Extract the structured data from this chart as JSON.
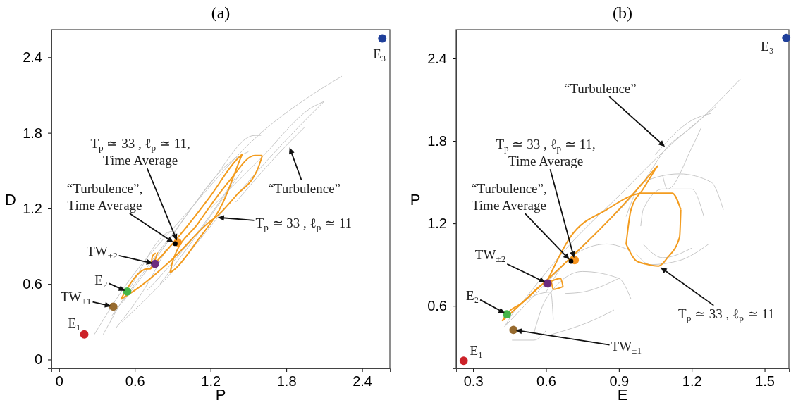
{
  "chart_data": [
    {
      "type": "line",
      "title": "(a)",
      "xlabel": "P",
      "ylabel": "D",
      "xlim": [
        -0.06,
        2.62
      ],
      "ylim": [
        -0.07,
        2.62
      ],
      "xticks": [
        0,
        0.6,
        1.2,
        1.8,
        2.4
      ],
      "yticks": [
        0,
        0.6,
        1.2,
        1.8,
        2.4
      ],
      "series": [
        {
          "type": "line",
          "marker": "none",
          "color": "#c8c8c8",
          "x": [
            0.28,
            0.5,
            1.0,
            1.6,
            2.0,
            2.24
          ],
          "values": [
            0.2,
            0.55,
            1.15,
            1.8,
            2.1,
            2.25
          ]
        },
        {
          "type": "line",
          "marker": "none",
          "color": "#c8c8c8",
          "x": [
            0.5,
            0.9,
            1.4,
            1.9,
            2.1
          ],
          "values": [
            0.3,
            0.7,
            1.3,
            1.85,
            2.05
          ]
        },
        {
          "type": "line",
          "marker": "none",
          "color": "#c8c8c8",
          "x": [
            0.5,
            0.8,
            1.2,
            1.55,
            1.6
          ],
          "values": [
            0.45,
            0.85,
            1.4,
            1.78,
            1.78
          ]
        },
        {
          "type": "line",
          "marker": "none",
          "color": "#c8c8c8",
          "x": [
            0.8,
            1.1,
            1.45
          ],
          "values": [
            0.6,
            1.0,
            1.5
          ]
        },
        {
          "type": "line",
          "marker": "none",
          "color": "#c8c8c8",
          "x": [
            0.35,
            0.55,
            0.9,
            0.92
          ],
          "values": [
            0.2,
            0.55,
            1.02,
            1.0
          ]
        },
        {
          "type": "line",
          "marker": "none",
          "color": "#c8c8c8",
          "x": [
            0.45,
            0.7,
            0.85
          ],
          "values": [
            0.25,
            0.6,
            0.88
          ]
        },
        {
          "type": "line",
          "marker": "none",
          "color": "#c8c8c8",
          "x": [
            1.2,
            1.6,
            2.0,
            2.1
          ],
          "values": [
            1.2,
            1.6,
            2.0,
            2.05
          ]
        },
        {
          "type": "line",
          "marker": "none",
          "color": "#c8c8c8",
          "x": [
            1.4,
            1.8,
            1.95
          ],
          "values": [
            1.25,
            1.7,
            1.85
          ]
        },
        {
          "type": "line",
          "marker": "none",
          "color": "#c8c8c8",
          "x": [
            0.42,
            0.9,
            1.4,
            1.5
          ],
          "values": [
            0.35,
            1.0,
            1.6,
            1.65
          ]
        },
        {
          "type": "line",
          "marker": "none",
          "color": "#c8c8c8",
          "x": [
            0.7,
            1.2,
            1.4
          ],
          "values": [
            0.55,
            1.15,
            1.45
          ]
        },
        {
          "type": "line",
          "marker": "none",
          "color": "#f39c1f",
          "x": [
            0.49,
            0.7,
            0.72,
            0.78
          ],
          "values": [
            0.48,
            0.72,
            0.72,
            0.85
          ]
        },
        {
          "type": "line",
          "marker": "none",
          "color": "#f39c1f",
          "x": [
            0.73,
            0.74,
            0.765
          ],
          "values": [
            0.76,
            0.82,
            0.845
          ]
        },
        {
          "type": "line",
          "marker": "none",
          "color": "#f39c1f",
          "x": [
            0.72,
            0.95,
            1.2,
            1.4,
            1.45
          ],
          "values": [
            0.72,
            0.98,
            1.3,
            1.58,
            1.63
          ]
        },
        {
          "type": "line",
          "marker": "none",
          "color": "#f39c1f",
          "x": [
            0.88,
            0.92,
            1.1,
            1.3,
            1.43,
            1.45
          ],
          "values": [
            0.69,
            0.72,
            0.95,
            1.25,
            1.58,
            1.63
          ]
        },
        {
          "type": "line",
          "marker": "none",
          "color": "#f39c1f",
          "x": [
            0.88,
            0.9,
            1.1,
            1.35,
            1.55,
            1.61
          ],
          "values": [
            0.69,
            0.78,
            1.08,
            1.42,
            1.62,
            1.62
          ]
        },
        {
          "type": "line",
          "marker": "none",
          "color": "#f39c1f",
          "x": [
            0.49,
            0.6,
            0.9,
            1.2,
            1.24,
            1.4,
            1.58,
            1.61
          ],
          "values": [
            0.48,
            0.55,
            0.8,
            1.1,
            1.13,
            1.3,
            1.53,
            1.62
          ]
        },
        {
          "type": "scatter",
          "marker": "circle",
          "color": "#cc2229",
          "x": [
            0.2
          ],
          "values": [
            0.2
          ]
        },
        {
          "type": "scatter",
          "marker": "circle",
          "color": "#1f3f9a",
          "x": [
            2.56
          ],
          "values": [
            2.55
          ]
        },
        {
          "type": "scatter",
          "marker": "circle",
          "color": "#966a2e",
          "x": [
            0.43
          ],
          "values": [
            0.42
          ]
        },
        {
          "type": "scatter",
          "marker": "circle",
          "color": "#45b649",
          "x": [
            0.54
          ],
          "values": [
            0.54
          ]
        },
        {
          "type": "scatter",
          "marker": "circle",
          "color": "#6c2a7e",
          "x": [
            0.76
          ],
          "values": [
            0.76
          ]
        },
        {
          "type": "scatter",
          "marker": "circle",
          "color": "#f7941d",
          "x": [
            0.94
          ],
          "values": [
            0.93
          ]
        },
        {
          "type": "scatter",
          "marker": "circle",
          "color": "#000000",
          "x": [
            0.92
          ],
          "values": [
            0.92
          ]
        }
      ],
      "annotations": [
        {
          "text": "E₁",
          "x": 0.2,
          "y": 0.2
        },
        {
          "text": "E₃",
          "x": 2.56,
          "y": 2.55
        },
        {
          "text": "TW$_{±1}$",
          "x": 0.43,
          "y": 0.42
        },
        {
          "text": "E₂",
          "x": 0.54,
          "y": 0.54
        },
        {
          "text": "TW$_{±2}$",
          "x": 0.76,
          "y": 0.76
        },
        {
          "text": "“Turbulence”,\nTime Average",
          "x": 0.92,
          "y": 0.92
        },
        {
          "text": "T$_{p}$ ≃ 33 , ℓ$_{p}$ ≃ 11,\nTime Average",
          "x": 0.94,
          "y": 0.93
        },
        {
          "text": "T$_{p}$ ≃ 33 , ℓ$_{p}$ ≃ 11",
          "x": 1.24,
          "y": 1.13
        },
        {
          "text": "“Turbulence”",
          "x": 1.82,
          "y": 1.7
        }
      ]
    },
    {
      "type": "line",
      "title": "(b)",
      "xlabel": "E",
      "ylabel": "P",
      "xlim": [
        0.23,
        1.6
      ],
      "ylim": [
        0.145,
        2.61
      ],
      "xticks": [
        0.3,
        0.6,
        0.9,
        1.2,
        1.5
      ],
      "yticks": [
        0.6,
        1.2,
        1.8,
        2.4
      ],
      "series": [
        {
          "type": "line",
          "marker": "none",
          "color": "#c8c8c8",
          "x": [
            0.43,
            0.7,
            1.0,
            1.096,
            1.2,
            1.4
          ],
          "values": [
            0.45,
            0.95,
            1.5,
            1.748,
            1.9,
            2.25
          ]
        },
        {
          "type": "line",
          "marker": "none",
          "color": "#c8c8c8",
          "x": [
            0.5,
            0.7,
            0.9,
            1.1,
            1.3
          ],
          "values": [
            0.62,
            1.05,
            1.4,
            1.75,
            2.05
          ]
        },
        {
          "type": "line",
          "marker": "none",
          "color": "#c8c8c8",
          "x": [
            0.93,
            1.0,
            1.15,
            1.28,
            1.33
          ],
          "values": [
            1.25,
            1.5,
            1.56,
            1.5,
            1.3
          ]
        },
        {
          "type": "line",
          "marker": "none",
          "color": "#c8c8c8",
          "x": [
            0.97,
            1.03,
            1.15,
            1.27
          ],
          "values": [
            0.98,
            0.9,
            0.93,
            1.05
          ]
        },
        {
          "type": "line",
          "marker": "none",
          "color": "#c8c8c8",
          "x": [
            0.99,
            1.0,
            1.08,
            1.2,
            1.25
          ],
          "values": [
            1.18,
            1.3,
            1.45,
            1.45,
            1.25
          ]
        },
        {
          "type": "line",
          "marker": "none",
          "color": "#c8c8c8",
          "x": [
            1.0,
            1.08,
            1.2
          ],
          "values": [
            1.05,
            0.95,
            1.02
          ]
        },
        {
          "type": "line",
          "marker": "none",
          "color": "#c8c8c8",
          "x": [
            0.43,
            0.5,
            0.62,
            0.63
          ],
          "values": [
            0.45,
            0.62,
            0.7,
            0.5
          ]
        },
        {
          "type": "line",
          "marker": "none",
          "color": "#c8c8c8",
          "x": [
            0.46,
            0.55,
            0.6
          ],
          "values": [
            0.35,
            0.35,
            0.42
          ]
        },
        {
          "type": "line",
          "marker": "none",
          "color": "#c8c8c8",
          "x": [
            0.55,
            0.6,
            0.75,
            0.9,
            0.95
          ],
          "values": [
            0.4,
            0.65,
            0.85,
            0.8,
            0.65
          ]
        },
        {
          "type": "line",
          "marker": "none",
          "color": "#c8c8c8",
          "x": [
            0.62,
            0.8,
            0.88
          ],
          "values": [
            0.39,
            0.5,
            0.57
          ]
        },
        {
          "type": "line",
          "marker": "none",
          "color": "#c8c8c8",
          "x": [
            0.6,
            0.7,
            0.85,
            0.95
          ],
          "values": [
            0.7,
            0.95,
            1.05,
            1.0
          ]
        },
        {
          "type": "line",
          "marker": "none",
          "color": "#c8c8c8",
          "x": [
            0.68,
            0.75,
            0.9
          ],
          "values": [
            0.69,
            0.7,
            0.8
          ]
        },
        {
          "type": "line",
          "marker": "none",
          "color": "#c8c8c8",
          "x": [
            1.05,
            1.2,
            1.28
          ],
          "values": [
            1.7,
            1.95,
            2.0
          ]
        },
        {
          "type": "line",
          "marker": "none",
          "color": "#c8c8c8",
          "x": [
            1.08,
            1.1,
            1.2,
            1.24
          ],
          "values": [
            1.55,
            1.45,
            1.75,
            1.9
          ]
        },
        {
          "type": "line",
          "marker": "none",
          "color": "#f39c1f",
          "x": [
            0.42,
            0.55,
            0.72,
            0.9,
            1.06
          ],
          "values": [
            0.49,
            0.7,
            0.98,
            1.3,
            1.62
          ]
        },
        {
          "type": "line",
          "marker": "none",
          "color": "#f39c1f",
          "x": [
            0.93,
            0.95,
            1.0,
            1.06
          ],
          "values": [
            1.05,
            1.3,
            1.45,
            1.62
          ]
        },
        {
          "type": "line",
          "marker": "none",
          "color": "#f39c1f",
          "x": [
            0.93,
            0.97,
            1.01,
            1.064,
            1.1,
            1.15,
            1.155
          ],
          "values": [
            1.05,
            0.93,
            0.905,
            0.89,
            0.95,
            1.1,
            1.3
          ]
        },
        {
          "type": "line",
          "marker": "none",
          "color": "#f39c1f",
          "x": [
            0.6,
            0.7,
            0.85,
            1.0,
            1.12,
            1.155
          ],
          "values": [
            0.76,
            1.1,
            1.3,
            1.42,
            1.42,
            1.3
          ]
        },
        {
          "type": "line",
          "marker": "none",
          "color": "#f39c1f",
          "x": [
            0.6,
            0.66,
            0.67
          ],
          "values": [
            0.76,
            0.8,
            0.74
          ]
        },
        {
          "type": "line",
          "marker": "none",
          "color": "#f39c1f",
          "x": [
            0.42,
            0.43,
            0.5,
            0.62,
            0.63,
            0.67
          ],
          "values": [
            0.49,
            0.52,
            0.62,
            0.78,
            0.72,
            0.74
          ]
        },
        {
          "type": "scatter",
          "marker": "circle",
          "color": "#cc2229",
          "x": [
            0.261
          ],
          "values": [
            0.2
          ]
        },
        {
          "type": "scatter",
          "marker": "circle",
          "color": "#1f3f9a",
          "x": [
            1.589
          ],
          "values": [
            2.55
          ]
        },
        {
          "type": "scatter",
          "marker": "circle",
          "color": "#966a2e",
          "x": [
            0.466
          ],
          "values": [
            0.425
          ]
        },
        {
          "type": "scatter",
          "marker": "circle",
          "color": "#45b649",
          "x": [
            0.439
          ],
          "values": [
            0.539
          ]
        },
        {
          "type": "scatter",
          "marker": "circle",
          "color": "#6c2a7e",
          "x": [
            0.606
          ],
          "values": [
            0.763
          ]
        },
        {
          "type": "scatter",
          "marker": "circle",
          "color": "#f7941d",
          "x": [
            0.718
          ],
          "values": [
            0.933
          ]
        },
        {
          "type": "scatter",
          "marker": "circle",
          "color": "#000000",
          "x": [
            0.703
          ],
          "values": [
            0.924
          ]
        }
      ],
      "annotations": [
        {
          "text": "E₁",
          "x": 0.261,
          "y": 0.2
        },
        {
          "text": "E₃",
          "x": 1.589,
          "y": 2.55
        },
        {
          "text": "TW$_{±1}$",
          "x": 0.466,
          "y": 0.425
        },
        {
          "text": "E₂",
          "x": 0.439,
          "y": 0.539
        },
        {
          "text": "TW$_{±2}$",
          "x": 0.606,
          "y": 0.763
        },
        {
          "text": "“Turbulence”,\nTime Average",
          "x": 0.703,
          "y": 0.924
        },
        {
          "text": "T$_{p}$ ≃ 33 , ℓ$_{p}$ ≃ 11,\nTime Average",
          "x": 0.718,
          "y": 0.933
        },
        {
          "text": "T$_{p}$ ≃ 33 , ℓ$_{p}$ ≃ 11",
          "x": 1.064,
          "y": 0.89
        },
        {
          "text": "“Turbulence”",
          "x": 1.096,
          "y": 1.748
        }
      ]
    }
  ]
}
